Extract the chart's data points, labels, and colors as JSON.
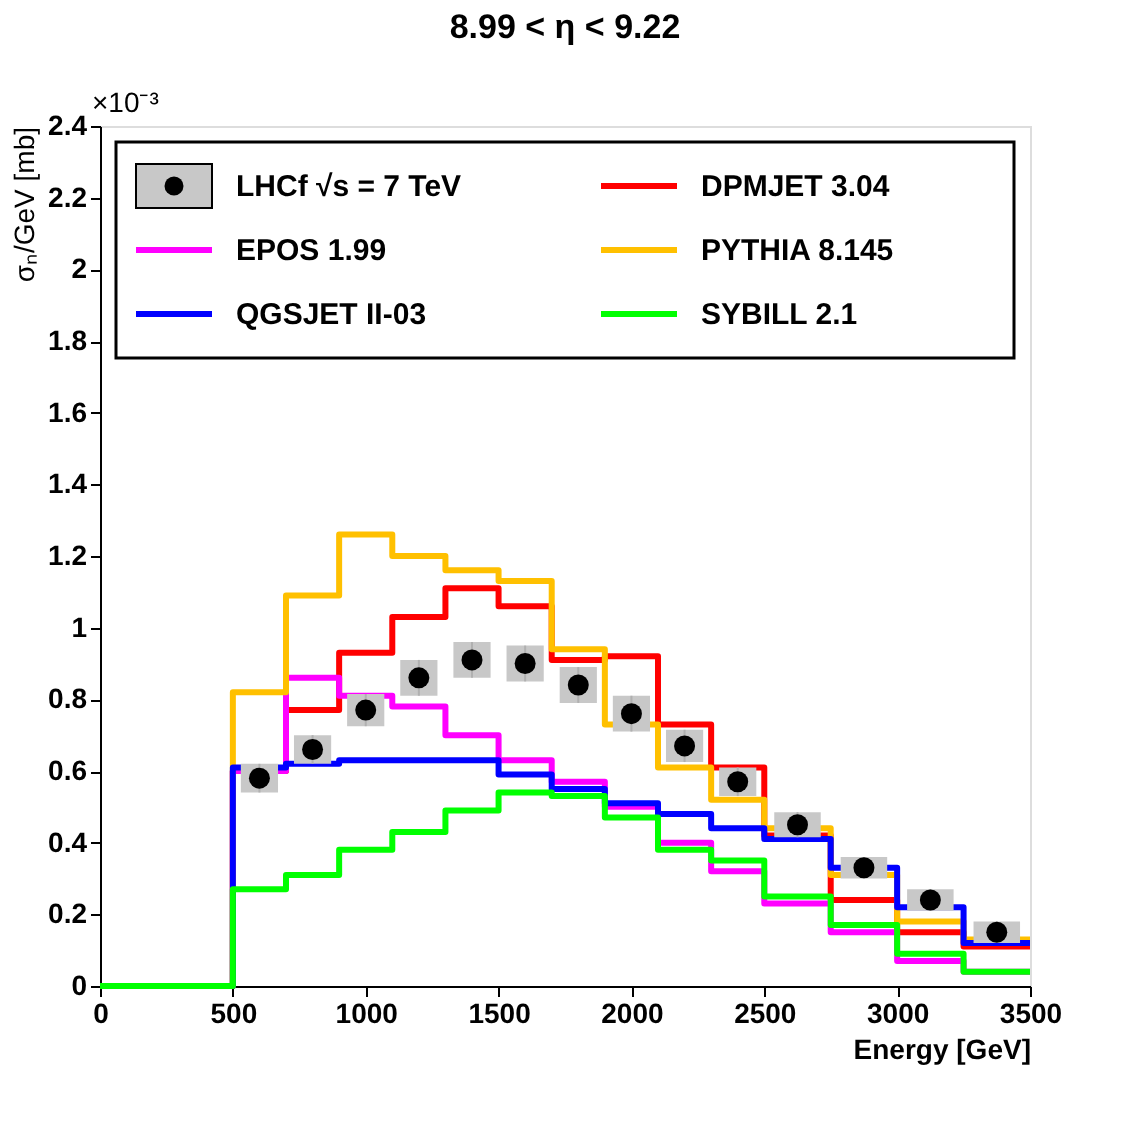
{
  "chart_data": {
    "type": "histogram",
    "title": "8.99 < η < 9.22",
    "xlabel": "Energy [GeV]",
    "ylabel": "σₙ/GeV [mb]",
    "annotations": [
      "×10⁻³"
    ],
    "bins": [
      0,
      500,
      700,
      900,
      1100,
      1300,
      1500,
      1700,
      1900,
      2100,
      2300,
      2500,
      2750,
      3000,
      3250,
      3500
    ],
    "xlim": [
      0,
      3500
    ],
    "xticks": [
      0,
      500,
      1000,
      1500,
      2000,
      2500,
      3000,
      3500
    ],
    "ylim": [
      0,
      2.4
    ],
    "yticks": [
      0,
      0.2,
      0.4,
      0.6,
      0.8,
      1,
      1.2,
      1.4,
      1.6,
      1.8,
      2,
      2.2,
      2.4
    ],
    "grid": false,
    "legend": "top",
    "series": [
      {
        "name": "LHCf √s = 7 TeV",
        "type": "scatter",
        "color": "#000000",
        "marker": "circle",
        "x": [
          600,
          800,
          1000,
          1200,
          1400,
          1600,
          1800,
          2000,
          2200,
          2400,
          2625,
          2875,
          3125,
          3375
        ],
        "values": [
          0.58,
          0.66,
          0.77,
          0.86,
          0.91,
          0.9,
          0.84,
          0.76,
          0.67,
          0.57,
          0.45,
          0.33,
          0.24,
          0.15
        ],
        "errors": [
          0.04,
          0.04,
          0.045,
          0.05,
          0.05,
          0.05,
          0.05,
          0.05,
          0.045,
          0.04,
          0.035,
          0.03,
          0.03,
          0.03
        ]
      },
      {
        "name": "DPMJET 3.04",
        "color": "#ff0000",
        "values": [
          0,
          0.6,
          0.77,
          0.93,
          1.03,
          1.11,
          1.06,
          0.91,
          0.92,
          0.73,
          0.61,
          0.42,
          0.24,
          0.15,
          0.11
        ]
      },
      {
        "name": "EPOS 1.99",
        "color": "#ff00ff",
        "values": [
          0,
          0.6,
          0.86,
          0.81,
          0.78,
          0.7,
          0.63,
          0.57,
          0.5,
          0.4,
          0.32,
          0.23,
          0.15,
          0.07,
          0.04
        ]
      },
      {
        "name": "PYTHIA 8.145",
        "color": "#ffc000",
        "values": [
          0,
          0.82,
          1.09,
          1.26,
          1.2,
          1.16,
          1.13,
          0.94,
          0.73,
          0.61,
          0.52,
          0.44,
          0.31,
          0.18,
          0.13
        ]
      },
      {
        "name": "QGSJET II-03",
        "color": "#0000ff",
        "values": [
          0,
          0.61,
          0.62,
          0.63,
          0.63,
          0.63,
          0.59,
          0.55,
          0.51,
          0.48,
          0.44,
          0.41,
          0.33,
          0.22,
          0.12
        ]
      },
      {
        "name": "SYBILL 2.1",
        "color": "#00ff00",
        "values": [
          0,
          0.27,
          0.31,
          0.38,
          0.43,
          0.49,
          0.54,
          0.53,
          0.47,
          0.38,
          0.35,
          0.25,
          0.17,
          0.09,
          0.04
        ]
      }
    ]
  }
}
